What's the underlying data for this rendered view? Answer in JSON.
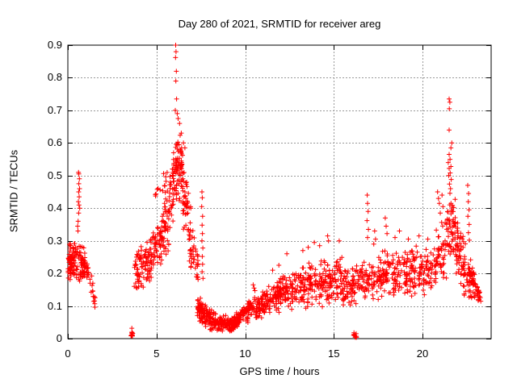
{
  "title": "Day 280 of 2021, SRMTID for receiver areg",
  "axes": {
    "x": {
      "label": "GPS time / hours",
      "tick_labels": [
        "0",
        "5",
        "10",
        "15",
        "20"
      ],
      "tick_values": [
        0,
        5,
        10,
        15,
        20
      ]
    },
    "y": {
      "label": "SRMTID / TECUs",
      "tick_labels": [
        "0",
        "0.1",
        "0.2",
        "0.3",
        "0.4",
        "0.5",
        "0.6",
        "0.7",
        "0.8",
        "0.9"
      ],
      "tick_values": [
        0,
        0.1,
        0.2,
        0.3,
        0.4,
        0.5,
        0.6,
        0.7,
        0.8,
        0.9
      ]
    }
  },
  "style": {
    "marker": "plus",
    "marker_color": "#ff0000",
    "grid_color": "#999999",
    "axis_color": "#000000",
    "background": "#ffffff"
  },
  "chart_data": {
    "type": "scatter",
    "title": "Day 280 of 2021, SRMTID for receiver areg",
    "xlabel": "GPS time / hours",
    "ylabel": "SRMTID / TECUs",
    "xlim": [
      0,
      23.87
    ],
    "ylim": [
      0,
      0.9
    ],
    "grid": true,
    "legend": false,
    "marker": "plus",
    "color": "#ff0000",
    "bands_note": "dense point clouds given as [x0,x1,yLow@x0,yHigh@x0,yLow@x1,yHigh@x1,count]",
    "bands": [
      [
        0.0,
        0.5,
        0.165,
        0.3,
        0.165,
        0.315,
        85
      ],
      [
        0.5,
        1.2,
        0.17,
        0.3,
        0.16,
        0.27,
        75
      ],
      [
        1.2,
        1.55,
        0.12,
        0.25,
        0.09,
        0.15,
        16
      ],
      [
        3.56,
        3.66,
        0.002,
        0.022,
        0.002,
        0.022,
        12
      ],
      [
        3.72,
        4.65,
        0.145,
        0.27,
        0.16,
        0.31,
        80
      ],
      [
        4.65,
        5.45,
        0.17,
        0.33,
        0.22,
        0.42,
        75
      ],
      [
        4.9,
        5.65,
        0.42,
        0.5,
        0.44,
        0.55,
        14
      ],
      [
        5.45,
        5.95,
        0.24,
        0.46,
        0.3,
        0.57,
        55
      ],
      [
        5.9,
        6.45,
        0.4,
        0.64,
        0.42,
        0.66,
        85
      ],
      [
        6.45,
        6.8,
        0.33,
        0.61,
        0.3,
        0.5,
        42
      ],
      [
        6.8,
        7.35,
        0.2,
        0.46,
        0.16,
        0.26,
        48
      ],
      [
        7.3,
        7.9,
        0.045,
        0.135,
        0.035,
        0.1,
        90
      ],
      [
        7.9,
        9.35,
        0.022,
        0.095,
        0.018,
        0.062,
        150
      ],
      [
        9.35,
        9.75,
        0.025,
        0.07,
        0.04,
        0.1,
        50
      ],
      [
        9.75,
        11.0,
        0.04,
        0.105,
        0.06,
        0.155,
        110
      ],
      [
        11.0,
        12.1,
        0.06,
        0.16,
        0.075,
        0.2,
        100
      ],
      [
        12.1,
        13.6,
        0.075,
        0.2,
        0.09,
        0.235,
        120
      ],
      [
        13.6,
        15.5,
        0.09,
        0.24,
        0.1,
        0.26,
        150
      ],
      [
        15.5,
        16.55,
        0.09,
        0.22,
        0.1,
        0.24,
        80
      ],
      [
        16.1,
        16.28,
        0.002,
        0.02,
        0.002,
        0.02,
        12
      ],
      [
        16.55,
        18.1,
        0.1,
        0.25,
        0.12,
        0.28,
        120
      ],
      [
        18.1,
        20.75,
        0.11,
        0.27,
        0.13,
        0.3,
        190
      ],
      [
        20.75,
        21.35,
        0.14,
        0.36,
        0.16,
        0.4,
        45
      ],
      [
        21.35,
        21.85,
        0.2,
        0.47,
        0.24,
        0.44,
        60
      ],
      [
        21.85,
        22.45,
        0.16,
        0.42,
        0.14,
        0.3,
        55
      ],
      [
        22.3,
        23.0,
        0.12,
        0.28,
        0.11,
        0.24,
        70
      ],
      [
        22.95,
        23.3,
        0.1,
        0.22,
        0.1,
        0.16,
        22
      ]
    ],
    "points": [
      [
        0.55,
        0.345
      ],
      [
        0.58,
        0.36
      ],
      [
        0.61,
        0.385
      ],
      [
        0.63,
        0.41
      ],
      [
        0.59,
        0.42
      ],
      [
        0.64,
        0.435
      ],
      [
        0.61,
        0.45
      ],
      [
        0.66,
        0.46
      ],
      [
        0.62,
        0.475
      ],
      [
        0.65,
        0.49
      ],
      [
        0.62,
        0.505
      ],
      [
        0.6,
        0.51
      ],
      [
        0.67,
        0.4
      ],
      [
        0.57,
        0.33
      ],
      [
        3.61,
        0.032
      ],
      [
        6.08,
        0.9
      ],
      [
        6.1,
        0.88
      ],
      [
        6.07,
        0.862
      ],
      [
        6.12,
        0.82
      ],
      [
        6.09,
        0.79
      ],
      [
        6.13,
        0.735
      ],
      [
        6.06,
        0.7
      ],
      [
        6.17,
        0.69
      ],
      [
        6.22,
        0.675
      ],
      [
        6.3,
        0.66
      ],
      [
        6.52,
        0.6
      ],
      [
        6.6,
        0.585
      ],
      [
        7.56,
        0.45
      ],
      [
        7.58,
        0.432
      ],
      [
        7.55,
        0.405
      ],
      [
        7.6,
        0.375
      ],
      [
        7.57,
        0.348
      ],
      [
        7.59,
        0.322
      ],
      [
        7.56,
        0.3
      ],
      [
        7.61,
        0.278
      ],
      [
        7.58,
        0.252
      ],
      [
        7.6,
        0.228
      ],
      [
        7.57,
        0.205
      ],
      [
        7.62,
        0.185
      ],
      [
        10.45,
        0.165
      ],
      [
        10.5,
        0.155
      ],
      [
        10.55,
        0.147
      ],
      [
        11.55,
        0.21
      ],
      [
        11.9,
        0.225
      ],
      [
        12.35,
        0.26
      ],
      [
        13.25,
        0.27
      ],
      [
        13.55,
        0.28
      ],
      [
        13.9,
        0.295
      ],
      [
        14.65,
        0.315
      ],
      [
        14.7,
        0.3
      ],
      [
        15.3,
        0.3
      ],
      [
        14.2,
        0.285
      ],
      [
        16.88,
        0.44
      ],
      [
        16.9,
        0.415
      ],
      [
        16.93,
        0.39
      ],
      [
        16.87,
        0.362
      ],
      [
        16.95,
        0.335
      ],
      [
        16.9,
        0.31
      ],
      [
        17.3,
        0.33
      ],
      [
        17.35,
        0.305
      ],
      [
        17.9,
        0.37
      ],
      [
        17.95,
        0.345
      ],
      [
        18.0,
        0.322
      ],
      [
        17.25,
        0.29
      ],
      [
        18.45,
        0.31
      ],
      [
        18.7,
        0.33
      ],
      [
        19.2,
        0.305
      ],
      [
        19.8,
        0.315
      ],
      [
        20.3,
        0.305
      ],
      [
        20.85,
        0.45
      ],
      [
        20.9,
        0.43
      ],
      [
        20.95,
        0.415
      ],
      [
        21.0,
        0.385
      ],
      [
        21.1,
        0.44
      ],
      [
        21.15,
        0.405
      ],
      [
        21.5,
        0.735
      ],
      [
        21.54,
        0.725
      ],
      [
        21.51,
        0.705
      ],
      [
        21.5,
        0.64
      ],
      [
        21.65,
        0.6
      ],
      [
        21.6,
        0.585
      ],
      [
        21.5,
        0.565
      ],
      [
        21.55,
        0.55
      ],
      [
        21.45,
        0.54
      ],
      [
        21.6,
        0.528
      ],
      [
        21.5,
        0.522
      ],
      [
        21.56,
        0.508
      ],
      [
        21.48,
        0.5
      ],
      [
        21.62,
        0.488
      ],
      [
        21.52,
        0.474
      ],
      [
        21.58,
        0.46
      ],
      [
        22.55,
        0.47
      ],
      [
        22.6,
        0.445
      ],
      [
        22.58,
        0.42
      ],
      [
        22.62,
        0.395
      ],
      [
        22.56,
        0.375
      ],
      [
        22.63,
        0.35
      ],
      [
        22.59,
        0.325
      ],
      [
        22.64,
        0.302
      ]
    ]
  }
}
